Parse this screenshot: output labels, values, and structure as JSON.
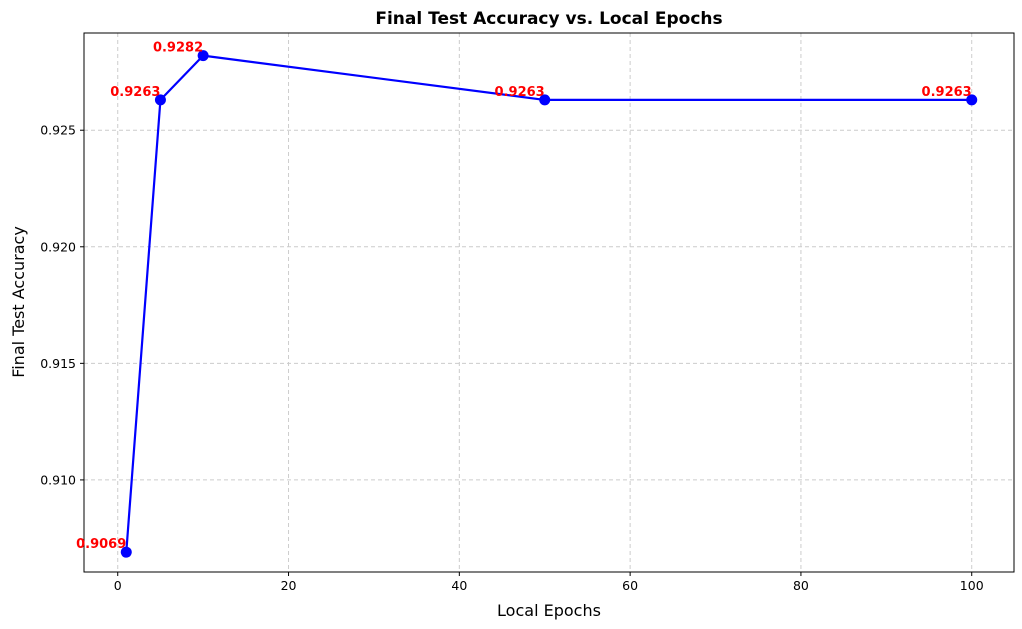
{
  "chart_data": {
    "type": "line",
    "title": "Final Test Accuracy vs. Local Epochs",
    "xlabel": "Local Epochs",
    "ylabel": "Final Test Accuracy",
    "x": [
      1,
      5,
      10,
      50,
      100
    ],
    "series": [
      {
        "values": [
          0.9069,
          0.9263,
          0.9282,
          0.9263,
          0.9263
        ]
      }
    ],
    "data_labels": [
      "0.9069",
      "0.9263",
      "0.9282",
      "0.9263",
      "0.9263"
    ],
    "xlim": [
      -3.95,
      104.95
    ],
    "ylim": [
      0.90605,
      0.92917
    ],
    "xticks": [
      0,
      20,
      40,
      60,
      80,
      100
    ],
    "xtick_labels": [
      "0",
      "20",
      "40",
      "60",
      "80",
      "100"
    ],
    "yticks": [
      0.91,
      0.915,
      0.92,
      0.925
    ],
    "ytick_labels": [
      "0.910",
      "0.915",
      "0.920",
      "0.925"
    ],
    "grid": true,
    "colors": {
      "line": "#0000ff",
      "marker": "#0000ff",
      "label": "#ff0000",
      "grid": "#cccccc"
    }
  }
}
